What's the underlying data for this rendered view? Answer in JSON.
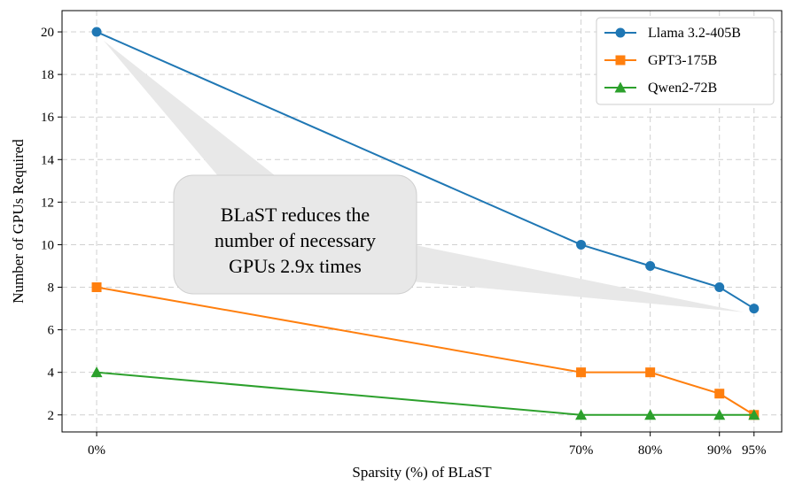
{
  "chart_data": {
    "type": "line",
    "title": "",
    "xlabel": "Sparsity (%) of BLaST",
    "ylabel": "Number of GPUs Required",
    "x": [
      0,
      70,
      80,
      90,
      95
    ],
    "x_tick_labels": [
      "0%",
      "70%",
      "80%",
      "90%",
      "95%"
    ],
    "xlim": [
      -5,
      99
    ],
    "ylim": [
      1.2,
      21
    ],
    "y_ticks": [
      2,
      4,
      6,
      8,
      10,
      12,
      14,
      16,
      18,
      20
    ],
    "grid": true,
    "legend_position": "top-right",
    "series": [
      {
        "name": "Llama 3.2-405B",
        "values": [
          20,
          10,
          9,
          8,
          7
        ],
        "color": "#1f77b4",
        "marker": "circle"
      },
      {
        "name": "GPT3-175B",
        "values": [
          8,
          4,
          4,
          3,
          2
        ],
        "color": "#ff7f0e",
        "marker": "square"
      },
      {
        "name": "Qwen2-72B",
        "values": [
          4,
          2,
          2,
          2,
          2
        ],
        "color": "#2ca02c",
        "marker": "triangle"
      }
    ],
    "annotation": {
      "lines": [
        "BLaST reduces the",
        "number of necessary",
        "GPUs 2.9x times"
      ],
      "from": {
        "x": 0,
        "y": 20
      },
      "to": {
        "x": 95,
        "y": 7
      }
    }
  }
}
